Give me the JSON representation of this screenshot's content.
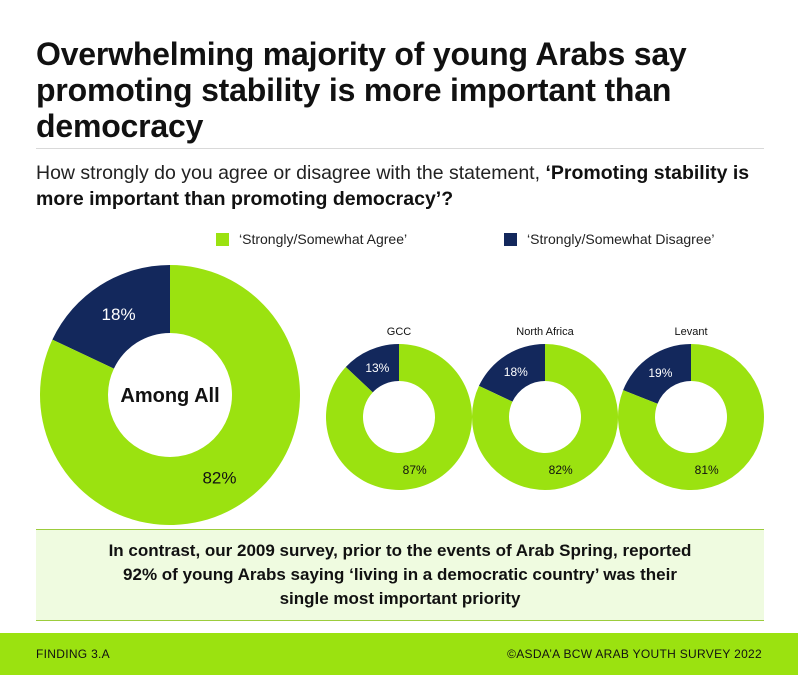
{
  "title": "Overwhelming majority of young Arabs say promoting stability is more important than democracy",
  "question_plain": "How strongly do you agree or disagree with the statement, ",
  "question_bold": "‘Promoting stability is more important than promoting democracy’?",
  "legend": [
    {
      "label": "‘Strongly/Somewhat Agree’",
      "color": "#9be210"
    },
    {
      "label": "‘Strongly/Somewhat Disagree’",
      "color": "#13285c"
    }
  ],
  "colors": {
    "agree": "#9be210",
    "disagree": "#13285c",
    "accent": "#9be210"
  },
  "chart_data": {
    "type": "pie",
    "series_names": [
      "‘Strongly/Somewhat Agree’",
      "‘Strongly/Somewhat Disagree’"
    ],
    "charts": [
      {
        "label": "Among All",
        "agree": 82,
        "disagree": 18,
        "agree_label": "82%",
        "disagree_label": "18%"
      },
      {
        "label": "GCC",
        "agree": 87,
        "disagree": 13,
        "agree_label": "87%",
        "disagree_label": "13%"
      },
      {
        "label": "North Africa",
        "agree": 82,
        "disagree": 18,
        "agree_label": "82%",
        "disagree_label": "18%"
      },
      {
        "label": "Levant",
        "agree": 81,
        "disagree": 19,
        "agree_label": "81%",
        "disagree_label": "19%"
      }
    ]
  },
  "callout": "In contrast, our 2009 survey, prior to the events of Arab Spring, reported 92% of young Arabs saying ‘living in a democratic country’ was their single most important priority",
  "footer": {
    "left": "FINDING 3.A",
    "right": "©ASDA’A BCW ARAB YOUTH SURVEY 2022"
  }
}
